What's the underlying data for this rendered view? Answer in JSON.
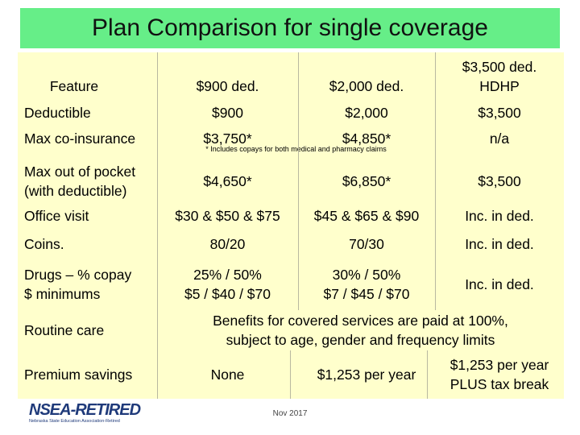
{
  "title": "Plan Comparison for single coverage",
  "table": {
    "header": [
      "Feature",
      "$900 ded.",
      "$2,000 ded.",
      [
        "$3,500 ded.",
        "HDHP"
      ]
    ],
    "rows": [
      [
        "Deductible",
        "$900",
        "$2,000",
        "$3,500"
      ],
      [
        "Max co-insurance",
        "$3,750*",
        "$4,850*",
        "n/a"
      ],
      [
        [
          "Max out of pocket",
          "(with deductible)"
        ],
        "$4,650*",
        "$6,850*",
        "$3,500"
      ],
      [
        "Office visit",
        "$30 & $50 & $75",
        "$45 & $65 & $90",
        "Inc. in ded."
      ],
      [
        "Coins.",
        "80/20",
        "70/30",
        "Inc. in ded."
      ],
      [
        [
          "Drugs – % copay",
          "$ minimums"
        ],
        [
          "25% / 50%",
          "$5 / $40 / $70"
        ],
        [
          "30% / 50%",
          "$7 / $45 / $70"
        ],
        "Inc. in ded."
      ],
      [
        "Routine care",
        [
          "Benefits for covered services are paid at 100%,",
          "subject to age, gender and frequency limits"
        ]
      ],
      [
        "Premium savings",
        "None",
        "$1,253 per year",
        [
          "$1,253 per year",
          "PLUS tax break"
        ]
      ]
    ]
  },
  "footnote": "* Includes copays for both medical and pharmacy claims",
  "date": "Nov 2017",
  "logo": {
    "name": "NSEA-RETIRED",
    "subtitle": "Nebraska State Education Association-Retired"
  }
}
